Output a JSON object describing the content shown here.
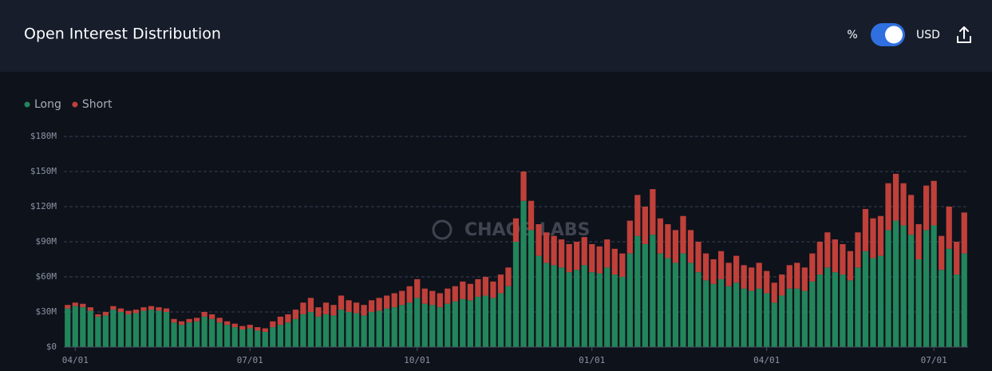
{
  "chart_data": {
    "type": "stacked_bar",
    "title": "Open Interest Distribution",
    "toggle_left": "%",
    "toggle_right": "USD",
    "watermark": "CHAOS LABS",
    "categories": [
      null,
      "04/01",
      null,
      null,
      null,
      null,
      null,
      null,
      null,
      null,
      null,
      null,
      null,
      null,
      null,
      null,
      null,
      null,
      null,
      null,
      null,
      null,
      null,
      null,
      "07/01",
      null,
      null,
      null,
      null,
      null,
      null,
      null,
      null,
      null,
      null,
      null,
      null,
      null,
      null,
      null,
      null,
      null,
      null,
      null,
      null,
      null,
      "10/01",
      null,
      null,
      null,
      null,
      null,
      null,
      null,
      null,
      null,
      null,
      null,
      null,
      null,
      null,
      null,
      null,
      null,
      null,
      null,
      null,
      null,
      null,
      "01/01",
      null,
      null,
      null,
      null,
      null,
      null,
      null,
      null,
      null,
      null,
      null,
      null,
      null,
      null,
      null,
      null,
      null,
      null,
      null,
      null,
      null,
      null,
      "04/01",
      null,
      null,
      null,
      null,
      null,
      null,
      null,
      null,
      null,
      null,
      null,
      null,
      null,
      null,
      null,
      null,
      null,
      null,
      null,
      null,
      null,
      "07/01",
      null,
      null,
      null,
      null
    ],
    "series": [
      {
        "name": "Long",
        "color": "#23855c",
        "values": [
          33,
          35,
          34,
          31,
          26,
          27,
          32,
          30,
          28,
          29,
          31,
          32,
          31,
          30,
          21,
          19,
          21,
          22,
          26,
          24,
          21,
          19,
          17,
          15,
          16,
          14,
          13,
          17,
          19,
          21,
          24,
          28,
          30,
          26,
          28,
          27,
          32,
          30,
          29,
          27,
          30,
          31,
          33,
          34,
          36,
          38,
          42,
          37,
          36,
          34,
          37,
          39,
          41,
          40,
          43,
          44,
          42,
          46,
          52,
          90,
          125,
          100,
          78,
          72,
          70,
          68,
          64,
          66,
          70,
          64,
          63,
          68,
          62,
          60,
          80,
          95,
          88,
          96,
          80,
          76,
          72,
          80,
          72,
          64,
          57,
          54,
          58,
          52,
          55,
          50,
          48,
          50,
          46,
          38,
          44,
          50,
          50,
          48,
          56,
          62,
          68,
          64,
          62,
          57,
          68,
          82,
          76,
          78,
          100,
          108,
          104,
          96,
          75,
          100,
          104,
          66,
          84,
          62,
          80
        ]
      },
      {
        "name": "Short",
        "color": "#c0403a",
        "values": [
          3,
          3,
          3,
          3,
          2,
          3,
          3,
          3,
          3,
          3,
          3,
          3,
          3,
          3,
          3,
          3,
          3,
          3,
          4,
          4,
          4,
          3,
          3,
          3,
          3,
          3,
          3,
          5,
          7,
          7,
          8,
          10,
          12,
          8,
          10,
          9,
          12,
          10,
          9,
          9,
          10,
          11,
          11,
          12,
          12,
          14,
          16,
          13,
          12,
          12,
          13,
          13,
          15,
          14,
          15,
          16,
          14,
          16,
          16,
          20,
          25,
          25,
          27,
          26,
          25,
          24,
          24,
          24,
          24,
          24,
          23,
          24,
          22,
          20,
          28,
          35,
          32,
          39,
          30,
          29,
          28,
          32,
          28,
          26,
          23,
          21,
          24,
          20,
          23,
          20,
          20,
          22,
          19,
          17,
          18,
          20,
          22,
          20,
          24,
          28,
          30,
          28,
          26,
          25,
          30,
          36,
          34,
          34,
          40,
          40,
          36,
          34,
          30,
          38,
          38,
          29,
          36,
          28,
          35
        ]
      }
    ],
    "ylim": [
      0,
      180
    ],
    "yticks": [
      {
        "value": 0,
        "label": "$0"
      },
      {
        "value": 30,
        "label": "$30M"
      },
      {
        "value": 60,
        "label": "$60M"
      },
      {
        "value": 90,
        "label": "$90M"
      },
      {
        "value": 120,
        "label": "$120M"
      },
      {
        "value": 150,
        "label": "$150M"
      },
      {
        "value": 180,
        "label": "$180M"
      }
    ],
    "grid": true
  }
}
